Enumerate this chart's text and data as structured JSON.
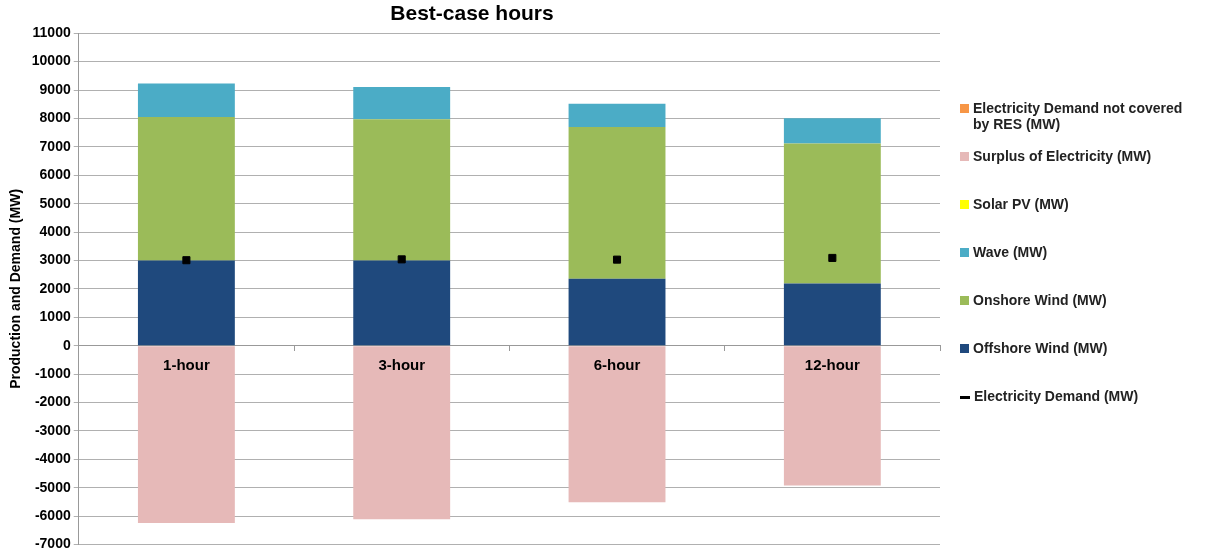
{
  "chart_data": {
    "type": "bar",
    "title": "Best-case hours",
    "ylabel": "Production and Demand (MW)",
    "categories": [
      "1-hour",
      "3-hour",
      "6-hour",
      "12-hour"
    ],
    "stacked": true,
    "grid": "y",
    "legend": "right",
    "marker": "square",
    "ylim": [
      -7000,
      11000
    ],
    "yticks": [
      -7000,
      -6000,
      -5000,
      -4000,
      -3000,
      -2000,
      -1000,
      0,
      1000,
      2000,
      3000,
      4000,
      5000,
      6000,
      7000,
      8000,
      9000,
      10000,
      11000
    ],
    "series": [
      {
        "name": "Offshore Wind (MW)",
        "color": "#1f497d",
        "values": [
          3000,
          3000,
          2360,
          2190
        ]
      },
      {
        "name": "Onshore Wind (MW)",
        "color": "#9bbb59",
        "values": [
          5050,
          4970,
          5340,
          4930
        ]
      },
      {
        "name": "Wave (MW)",
        "color": "#4bacc6",
        "values": [
          1180,
          1140,
          820,
          890
        ]
      },
      {
        "name": "Solar PV (MW)",
        "color": "#ffff00",
        "values": [
          0,
          0,
          0,
          0
        ]
      },
      {
        "name": "Surplus of Electricity (MW)",
        "color": "#e6b9b8",
        "values": [
          -6240,
          -6110,
          -5510,
          -4920
        ]
      },
      {
        "name": "Electricity Demand not covered by RES (MW)",
        "color": "#f79646",
        "values": [
          0,
          0,
          0,
          0
        ]
      },
      {
        "name": "Electricity Demand (MW)",
        "type": "scatter",
        "color": "#000000",
        "x": [
          "1-hour",
          "3-hour",
          "6-hour",
          "12-hour"
        ],
        "values": [
          3010,
          3040,
          3030,
          3090
        ]
      }
    ]
  }
}
